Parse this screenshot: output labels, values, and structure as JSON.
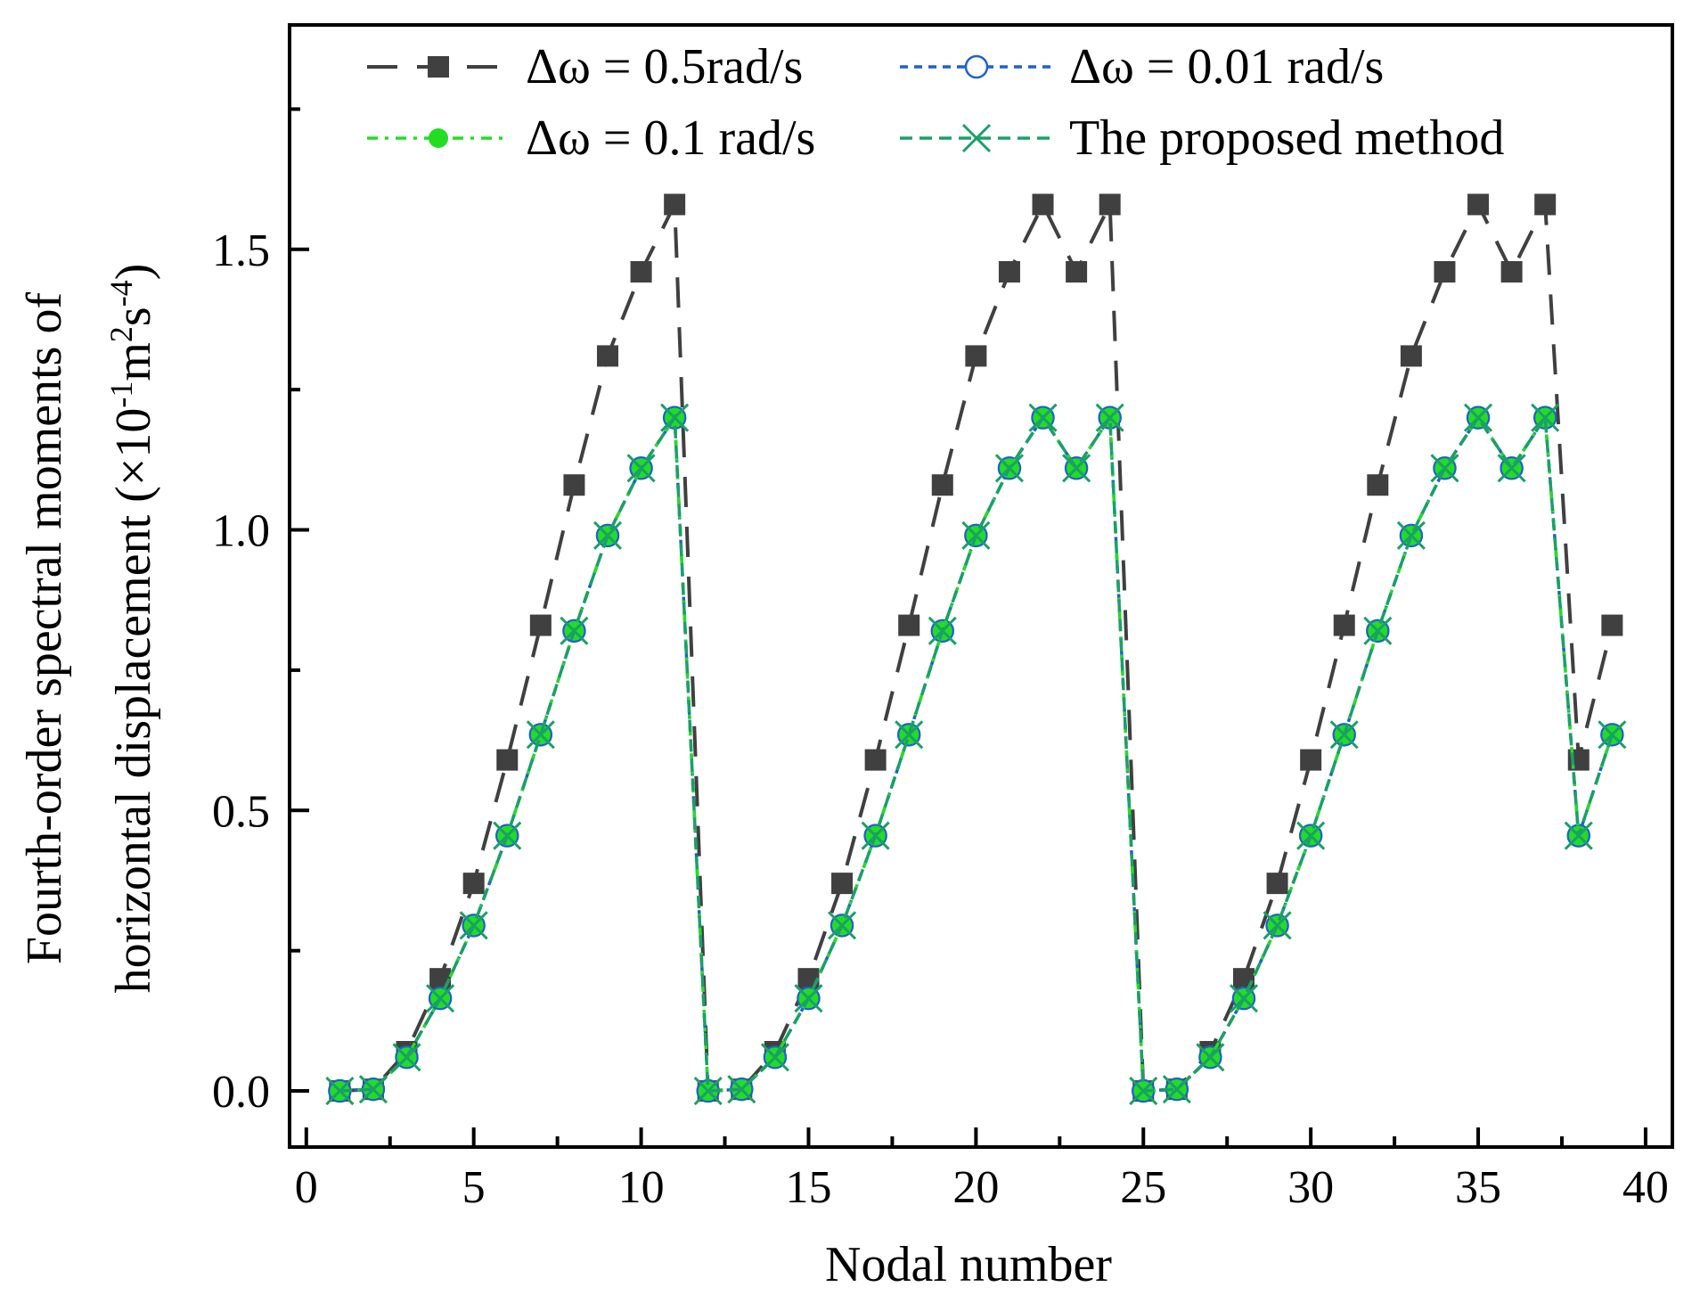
{
  "chart_data": {
    "type": "line",
    "xlabel": "Nodal number",
    "ylabel_line1": "Fourth-order spectral moments of",
    "ylabel_line2_prefix": "horizontal displacement (×10",
    "ylabel_sup1": "-1",
    "ylabel_mid": "m",
    "ylabel_sup2": "2",
    "ylabel_s": "s",
    "ylabel_sup3": "-4",
    "ylabel_close": ")",
    "xlim": [
      -0.5,
      40.8
    ],
    "ylim": [
      -0.1,
      1.9
    ],
    "xticks": [
      0,
      5,
      10,
      15,
      20,
      25,
      30,
      35,
      40
    ],
    "yticks": [
      0.0,
      0.5,
      1.0,
      1.5
    ],
    "xtick_labels": [
      "0",
      "5",
      "10",
      "15",
      "20",
      "25",
      "30",
      "35",
      "40"
    ],
    "ytick_labels": [
      "0.0",
      "0.5",
      "1.0",
      "1.5"
    ],
    "x": [
      1,
      2,
      3,
      4,
      5,
      6,
      7,
      8,
      9,
      10,
      11,
      12,
      13,
      14,
      15,
      16,
      17,
      18,
      19,
      20,
      21,
      22,
      23,
      24,
      25,
      26,
      27,
      28,
      29,
      30,
      31,
      32,
      33,
      34,
      35,
      36,
      37,
      38,
      39
    ],
    "series": [
      {
        "name": "Δω = 0.5rad/s",
        "color": "#404040",
        "marker": "square",
        "linestyle": "dash",
        "values": [
          0.0,
          0.003,
          0.07,
          0.2,
          0.37,
          0.59,
          0.83,
          1.08,
          1.31,
          1.46,
          1.58,
          0.0,
          0.003,
          0.07,
          0.2,
          0.37,
          0.59,
          0.83,
          1.08,
          1.31,
          1.46,
          1.58,
          1.46,
          1.58,
          0.0,
          0.003,
          0.07,
          0.2,
          0.37,
          0.59,
          0.83,
          1.08,
          1.31,
          1.46,
          1.58,
          1.46,
          1.58,
          0.59,
          0.83
        ]
      },
      {
        "name": "Δω = 0.01 rad/s",
        "color": "#1f5fd4",
        "marker": "circle-open",
        "linestyle": "dot",
        "values": [
          0.0,
          0.003,
          0.06,
          0.165,
          0.295,
          0.455,
          0.635,
          0.82,
          0.99,
          1.11,
          1.2,
          0.0,
          0.003,
          0.06,
          0.165,
          0.295,
          0.455,
          0.635,
          0.82,
          0.99,
          1.11,
          1.2,
          1.11,
          1.2,
          0.0,
          0.003,
          0.06,
          0.165,
          0.295,
          0.455,
          0.635,
          0.82,
          0.99,
          1.11,
          1.2,
          1.11,
          1.2,
          0.455,
          0.635
        ]
      },
      {
        "name": "Δω = 0.1 rad/s",
        "color": "#22dd22",
        "marker": "circle-filled",
        "linestyle": "dashdot",
        "values": [
          0.0,
          0.003,
          0.06,
          0.165,
          0.295,
          0.455,
          0.635,
          0.82,
          0.99,
          1.11,
          1.2,
          0.0,
          0.003,
          0.06,
          0.165,
          0.295,
          0.455,
          0.635,
          0.82,
          0.99,
          1.11,
          1.2,
          1.11,
          1.2,
          0.0,
          0.003,
          0.06,
          0.165,
          0.295,
          0.455,
          0.635,
          0.82,
          0.99,
          1.11,
          1.2,
          1.11,
          1.2,
          0.455,
          0.635
        ]
      },
      {
        "name": "The proposed method",
        "color": "#1aa068",
        "marker": "x",
        "linestyle": "shortdash",
        "values": [
          0.0,
          0.003,
          0.06,
          0.165,
          0.295,
          0.455,
          0.635,
          0.82,
          0.99,
          1.11,
          1.2,
          0.0,
          0.003,
          0.06,
          0.165,
          0.295,
          0.455,
          0.635,
          0.82,
          0.99,
          1.11,
          1.2,
          1.11,
          1.2,
          0.0,
          0.003,
          0.06,
          0.165,
          0.295,
          0.455,
          0.635,
          0.82,
          0.99,
          1.11,
          1.2,
          1.11,
          1.2,
          0.455,
          0.635
        ]
      }
    ],
    "legend_position": "top"
  }
}
